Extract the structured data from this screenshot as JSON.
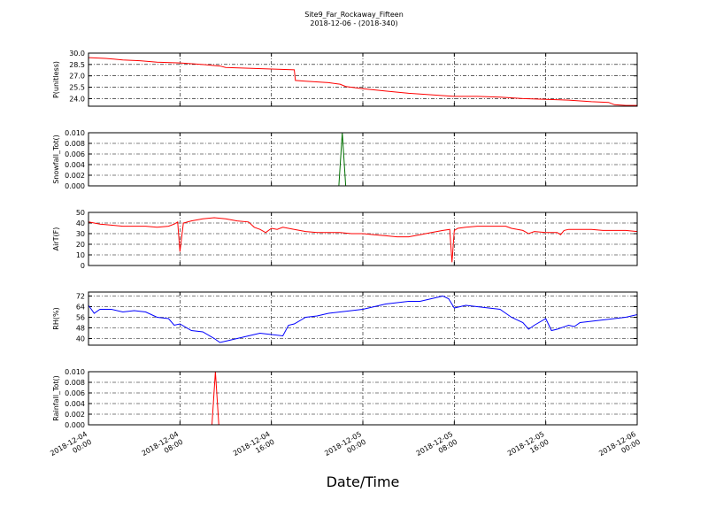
{
  "chart_data": {
    "type": "line",
    "title": "Site9_Far_Rockaway_Fifteen",
    "subtitle": "2018-12-06 - (2018-340)",
    "xlabel": "Date/Time",
    "x_ticks": [
      "2018-12-04 00:00",
      "2018-12-04 08:00",
      "2018-12-04 16:00",
      "2018-12-05 00:00",
      "2018-12-05 08:00",
      "2018-12-05 16:00",
      "2018-12-06 00:00"
    ],
    "x_tick_lines": [
      [
        "2018-12-04",
        "00:00"
      ],
      [
        "2018-12-04",
        "08:00"
      ],
      [
        "2018-12-04",
        "16:00"
      ],
      [
        "2018-12-05",
        "00:00"
      ],
      [
        "2018-12-05",
        "08:00"
      ],
      [
        "2018-12-05",
        "16:00"
      ],
      [
        "2018-12-06",
        "00:00"
      ]
    ],
    "x_range_hours": [
      0,
      48
    ],
    "grid": true,
    "panels": [
      {
        "ylabel": "P(unitless)",
        "color": "#ff0000",
        "ylim": [
          23.0,
          30.0
        ],
        "yticks": [
          "30.0",
          "28.5",
          "27.0",
          "25.5",
          "24.0"
        ],
        "ytick_values": [
          30.0,
          28.5,
          27.0,
          25.5,
          24.0
        ],
        "x": [
          0,
          1.5,
          3,
          4.5,
          6,
          8,
          10,
          11.5,
          12,
          14,
          16,
          18,
          18.1,
          19,
          21,
          22,
          22.5,
          24,
          26,
          28,
          30,
          32,
          34,
          36,
          38,
          40,
          42,
          44,
          45.5,
          46,
          47,
          48
        ],
        "y": [
          29.4,
          29.3,
          29.1,
          29.0,
          28.8,
          28.7,
          28.5,
          28.3,
          28.1,
          28.0,
          27.9,
          27.8,
          26.4,
          26.3,
          26.1,
          25.9,
          25.6,
          25.3,
          25.0,
          24.7,
          24.5,
          24.3,
          24.3,
          24.2,
          24.0,
          23.9,
          23.8,
          23.6,
          23.5,
          23.2,
          23.1,
          23.1
        ]
      },
      {
        "ylabel": "Snowfall_Tot()",
        "color": "#007000",
        "ylim": [
          0.0,
          0.01
        ],
        "yticks": [
          "0.010",
          "0.008",
          "0.006",
          "0.004",
          "0.002",
          "0.000"
        ],
        "ytick_values": [
          0.01,
          0.008,
          0.006,
          0.004,
          0.002,
          0.0
        ],
        "x": [
          0,
          21.9,
          22.2,
          22.5,
          48
        ],
        "y": [
          0.0,
          0.0,
          0.01,
          0.0,
          0.0
        ]
      },
      {
        "ylabel": "AirT(F)",
        "color": "#ff0000",
        "ylim": [
          0,
          50
        ],
        "yticks": [
          "50",
          "40",
          "30",
          "20",
          "10",
          "0"
        ],
        "ytick_values": [
          50,
          40,
          30,
          20,
          10,
          0
        ],
        "x": [
          0,
          1,
          2,
          3,
          4,
          5,
          6,
          7,
          7.5,
          7.8,
          8.0,
          8.3,
          9,
          10,
          11,
          12,
          13,
          14,
          14.5,
          15,
          15.5,
          16,
          16.5,
          17,
          18,
          19,
          20,
          21,
          22,
          23,
          24,
          25,
          26,
          27,
          28,
          29,
          30,
          31,
          31.6,
          31.8,
          32.0,
          32.3,
          33,
          34,
          35,
          36,
          36.5,
          37,
          38,
          38.5,
          39,
          40,
          41,
          41.3,
          41.6,
          42,
          43,
          44,
          45,
          46,
          47,
          48
        ],
        "y": [
          41,
          39,
          38,
          37,
          37,
          37,
          36,
          37,
          39,
          41,
          13,
          40,
          42,
          44,
          45,
          44,
          42,
          41,
          36,
          34,
          31,
          35,
          34,
          36,
          34,
          32,
          31,
          31,
          31,
          30,
          30,
          29,
          28,
          27,
          27,
          29,
          31,
          33,
          34,
          3,
          33,
          35,
          36,
          37,
          37,
          37,
          37,
          35,
          33,
          30,
          32,
          31,
          31,
          29,
          33,
          34,
          34,
          34,
          33,
          33,
          33,
          32
        ]
      },
      {
        "ylabel": "RH(%)",
        "color": "#0000ff",
        "ylim": [
          35,
          75
        ],
        "yticks": [
          "72",
          "64",
          "56",
          "48",
          "40"
        ],
        "ytick_values": [
          72,
          64,
          56,
          48,
          40
        ],
        "x": [
          0,
          0.5,
          1,
          2,
          3,
          4,
          5,
          6,
          7,
          7.5,
          8,
          9,
          10,
          11,
          11.5,
          12,
          13,
          14,
          15,
          16,
          17,
          17.5,
          18,
          19,
          20,
          21,
          22,
          23,
          24,
          25,
          26,
          27,
          28,
          29,
          30,
          31,
          31.5,
          32,
          33,
          34,
          35,
          36,
          37,
          38,
          38.5,
          39,
          40,
          40.5,
          41,
          42,
          42.5,
          43,
          44,
          45,
          46,
          47,
          48
        ],
        "y": [
          65,
          59,
          62,
          62,
          60,
          61,
          60,
          56,
          55,
          50,
          51,
          46,
          45,
          40,
          37,
          38,
          40,
          42,
          44,
          43,
          42,
          50,
          51,
          56,
          57,
          59,
          60,
          61,
          62,
          64,
          66,
          67,
          68,
          68,
          70,
          72,
          70,
          63,
          65,
          64,
          63,
          62,
          56,
          52,
          47,
          50,
          55,
          46,
          47,
          50,
          49,
          52,
          53,
          54,
          55,
          56,
          58
        ]
      },
      {
        "ylabel": "Rainfall_Tot()",
        "color": "#ff0000",
        "ylim": [
          0.0,
          0.01
        ],
        "yticks": [
          "0.010",
          "0.008",
          "0.006",
          "0.004",
          "0.002",
          "0.000"
        ],
        "ytick_values": [
          0.01,
          0.008,
          0.006,
          0.004,
          0.002,
          0.0
        ],
        "x": [
          0,
          10.8,
          11.1,
          11.4,
          48
        ],
        "y": [
          0.0,
          0.0,
          0.01,
          0.0,
          0.0
        ]
      }
    ]
  }
}
